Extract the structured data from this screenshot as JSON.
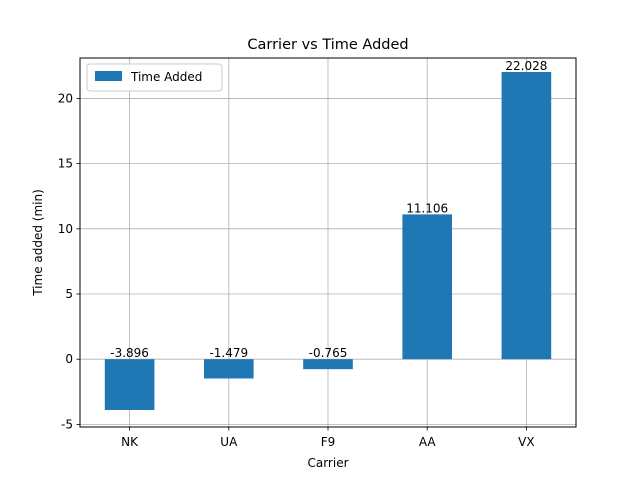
{
  "chart_data": {
    "type": "bar",
    "title": "Carrier vs Time Added",
    "xlabel": "Carrier",
    "ylabel": "Time added (min)",
    "categories": [
      "NK",
      "UA",
      "F9",
      "AA",
      "VX"
    ],
    "series": [
      {
        "name": "Time Added",
        "values": [
          -3.896,
          -1.479,
          -0.765,
          11.106,
          22.028
        ]
      }
    ],
    "data_labels": [
      "-3.896",
      "-1.479",
      "-0.765",
      "11.106",
      "22.028"
    ],
    "ylim": [
      -5.2,
      23.1
    ],
    "yticks": [
      -5,
      0,
      5,
      10,
      15,
      20
    ],
    "grid": true,
    "legend_position": "top-left",
    "bar_color": "#1f77b4"
  }
}
